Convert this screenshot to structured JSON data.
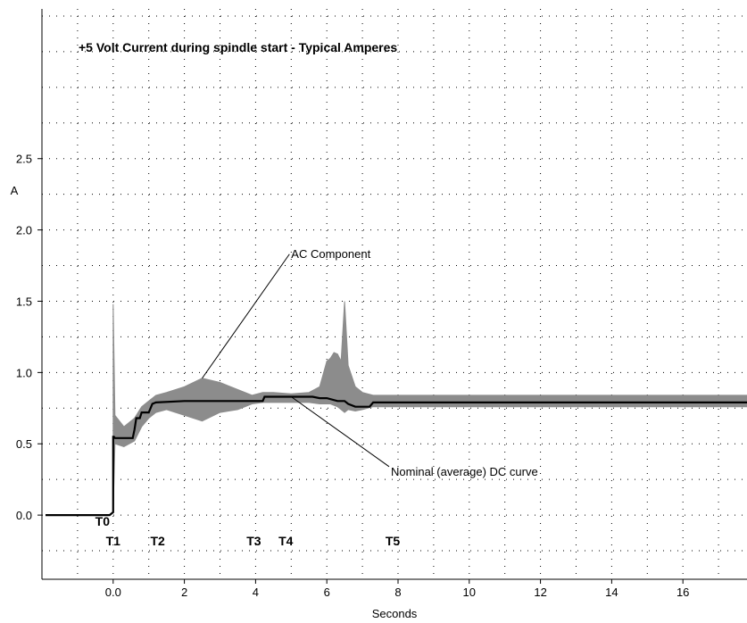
{
  "chart_data": {
    "type": "line",
    "title": "+5 Volt Current during spindle start - Typical Amperes",
    "xlabel": "Seconds",
    "ylabel": "A",
    "xlim": [
      -2,
      17.8
    ],
    "ylim": [
      -0.45,
      3.55
    ],
    "grid": true,
    "x_ticks": [
      0,
      2,
      4,
      6,
      8,
      10,
      12,
      14,
      16
    ],
    "x_tick_labels": [
      "0.0",
      "2",
      "4",
      "6",
      "8",
      "10",
      "12",
      "14",
      "16"
    ],
    "y_ticks": [
      0.0,
      0.5,
      1.0,
      1.5,
      2.0,
      2.5
    ],
    "y_tick_labels": [
      "0.0",
      "0.5",
      "1.0",
      "1.5",
      "2.0",
      "2.5"
    ],
    "colors": {
      "dc": "#000000",
      "ac": "#8c8c8c",
      "grid": "#000000"
    },
    "series": [
      {
        "x": [
          -1.9,
          -0.1,
          -0.05,
          0.0,
          0.0,
          0.02,
          0.05,
          0.1,
          0.55,
          0.6,
          0.65,
          0.75,
          0.8,
          1.0,
          1.05,
          1.1,
          1.2,
          2.0,
          3.0,
          4.0,
          4.2,
          4.25,
          4.3,
          5.0,
          5.6,
          5.8,
          6.0,
          6.3,
          6.5,
          6.6,
          6.8,
          7.0,
          7.2,
          7.3,
          8.0,
          10.0,
          12.0,
          14.0,
          16.0,
          17.8
        ],
        "y": [
          0.0,
          0.0,
          0.01,
          0.02,
          0.55,
          0.55,
          0.54,
          0.54,
          0.54,
          0.6,
          0.68,
          0.68,
          0.72,
          0.72,
          0.75,
          0.78,
          0.79,
          0.8,
          0.8,
          0.8,
          0.8,
          0.83,
          0.83,
          0.83,
          0.83,
          0.82,
          0.82,
          0.8,
          0.8,
          0.78,
          0.76,
          0.76,
          0.76,
          0.79,
          0.79,
          0.79,
          0.79,
          0.79,
          0.79,
          0.79
        ]
      }
    ],
    "ac_component": {
      "x": [
        0.0,
        0.05,
        0.3,
        0.6,
        0.8,
        1.0,
        1.2,
        1.5,
        2.0,
        2.5,
        3.0,
        3.5,
        3.9,
        4.2,
        4.5,
        5.0,
        5.5,
        5.8,
        6.0,
        6.1,
        6.2,
        6.3,
        6.4,
        6.5,
        6.6,
        6.8,
        7.0,
        7.3,
        8.0,
        10.0,
        12.0,
        14.0,
        16.0,
        17.8
      ],
      "high": [
        1.48,
        0.7,
        0.62,
        0.68,
        0.76,
        0.8,
        0.84,
        0.86,
        0.9,
        0.96,
        0.93,
        0.88,
        0.84,
        0.86,
        0.86,
        0.85,
        0.86,
        0.9,
        1.08,
        1.1,
        1.14,
        1.13,
        1.08,
        1.5,
        1.05,
        0.9,
        0.86,
        0.84,
        0.84,
        0.84,
        0.84,
        0.84,
        0.84,
        0.84
      ],
      "low": [
        0.02,
        0.5,
        0.48,
        0.52,
        0.62,
        0.68,
        0.72,
        0.74,
        0.7,
        0.66,
        0.72,
        0.74,
        0.78,
        0.79,
        0.79,
        0.79,
        0.79,
        0.78,
        0.78,
        0.78,
        0.77,
        0.76,
        0.74,
        0.72,
        0.74,
        0.73,
        0.74,
        0.76,
        0.76,
        0.76,
        0.76,
        0.76,
        0.76,
        0.76
      ]
    },
    "time_markers": [
      {
        "label": "T0",
        "x": -0.3,
        "row": 0
      },
      {
        "label": "T1",
        "x": 0.0,
        "row": 1
      },
      {
        "label": "T2",
        "x": 1.25,
        "row": 1
      },
      {
        "label": "T3",
        "x": 3.95,
        "row": 1
      },
      {
        "label": "T4",
        "x": 4.85,
        "row": 1
      },
      {
        "label": "T5",
        "x": 7.85,
        "row": 1
      }
    ],
    "annotations": [
      {
        "text": "AC Component",
        "anchor": {
          "x": 2.5,
          "y": 0.96
        },
        "label_at": {
          "x": 4.95,
          "y": 1.83
        }
      },
      {
        "text": "Nominal (average) DC curve",
        "anchor": {
          "x": 5.0,
          "y": 0.83
        },
        "label_at": {
          "x": 7.75,
          "y": 0.34
        }
      }
    ]
  }
}
